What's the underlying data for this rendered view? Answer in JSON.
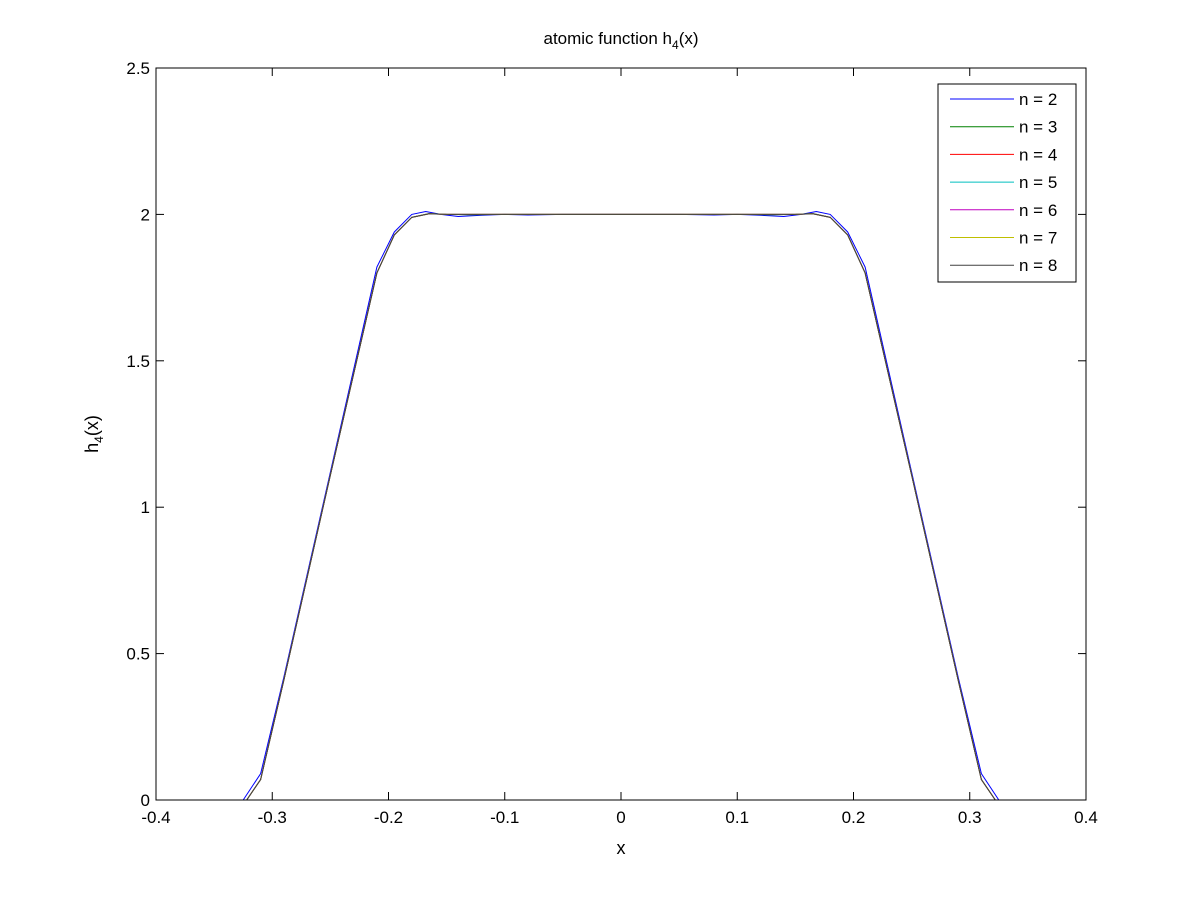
{
  "chart_data": {
    "type": "line",
    "title": "atomic function h4(x)",
    "title_parts": {
      "base": "atomic function h",
      "sub": "4",
      "tail": "(x)"
    },
    "xlabel": "x",
    "ylabel": "h4(x)",
    "ylabel_parts": {
      "base": "h",
      "sub": "4",
      "tail": "(x)"
    },
    "xlim": [
      -0.4,
      0.4
    ],
    "ylim": [
      0,
      2.5
    ],
    "xticks": [
      -0.4,
      -0.3,
      -0.2,
      -0.1,
      0,
      0.1,
      0.2,
      0.3,
      0.4
    ],
    "xtick_labels": [
      "-0.4",
      "-0.3",
      "-0.2",
      "-0.1",
      "0",
      "0.1",
      "0.2",
      "0.3",
      "0.4"
    ],
    "yticks": [
      0,
      0.5,
      1,
      1.5,
      2,
      2.5
    ],
    "ytick_labels": [
      "0",
      "0.5",
      "1",
      "1.5",
      "2",
      "2.5"
    ],
    "grid": false,
    "legend_position": "top-right",
    "series": [
      {
        "name": "n = 2",
        "color": "#0000ff",
        "x": [
          -0.4,
          -0.33,
          -0.325,
          -0.31,
          -0.29,
          -0.25,
          -0.21,
          -0.195,
          -0.18,
          -0.168,
          -0.155,
          -0.14,
          -0.12,
          -0.1,
          -0.08,
          -0.05,
          0,
          0.05,
          0.08,
          0.1,
          0.12,
          0.14,
          0.155,
          0.168,
          0.18,
          0.195,
          0.21,
          0.25,
          0.29,
          0.31,
          0.325,
          0.33,
          0.4
        ],
        "y": [
          0,
          0,
          0,
          0.09,
          0.42,
          1.12,
          1.82,
          1.94,
          2.0,
          2.01,
          2.0,
          1.993,
          1.997,
          2.0,
          1.998,
          2.0,
          2.0,
          2.0,
          1.998,
          2.0,
          1.997,
          1.993,
          2.0,
          2.01,
          2.0,
          1.94,
          1.82,
          1.12,
          0.42,
          0.09,
          0,
          0,
          0
        ]
      },
      {
        "name": "n = 3",
        "color": "#008000",
        "x": [
          -0.4,
          -0.33,
          -0.322,
          -0.31,
          -0.29,
          -0.25,
          -0.21,
          -0.195,
          -0.18,
          -0.165,
          -0.15,
          -0.13,
          -0.1,
          0,
          0.1,
          0.13,
          0.15,
          0.165,
          0.18,
          0.195,
          0.21,
          0.25,
          0.29,
          0.31,
          0.322,
          0.33,
          0.4
        ],
        "y": [
          0,
          0,
          0,
          0.07,
          0.41,
          1.11,
          1.8,
          1.93,
          1.99,
          2.003,
          2.0,
          1.999,
          2.0,
          2.0,
          2.0,
          1.999,
          2.0,
          2.003,
          1.99,
          1.93,
          1.8,
          1.11,
          0.41,
          0.07,
          0,
          0,
          0
        ]
      },
      {
        "name": "n = 4",
        "color": "#ff0000",
        "x": [
          -0.4,
          -0.33,
          -0.322,
          -0.31,
          -0.29,
          -0.25,
          -0.21,
          -0.195,
          -0.18,
          -0.165,
          -0.15,
          -0.13,
          -0.1,
          0,
          0.1,
          0.13,
          0.15,
          0.165,
          0.18,
          0.195,
          0.21,
          0.25,
          0.29,
          0.31,
          0.322,
          0.33,
          0.4
        ],
        "y": [
          0,
          0,
          0,
          0.07,
          0.41,
          1.11,
          1.8,
          1.93,
          1.99,
          2.002,
          2.0,
          2.0,
          2.0,
          2.0,
          2.0,
          2.0,
          2.0,
          2.002,
          1.99,
          1.93,
          1.8,
          1.11,
          0.41,
          0.07,
          0,
          0,
          0
        ]
      },
      {
        "name": "n = 5",
        "color": "#00bfbf",
        "x": [
          -0.4,
          -0.33,
          -0.322,
          -0.31,
          -0.29,
          -0.25,
          -0.21,
          -0.195,
          -0.18,
          -0.165,
          -0.15,
          -0.13,
          -0.1,
          0,
          0.1,
          0.13,
          0.15,
          0.165,
          0.18,
          0.195,
          0.21,
          0.25,
          0.29,
          0.31,
          0.322,
          0.33,
          0.4
        ],
        "y": [
          0,
          0,
          0,
          0.07,
          0.41,
          1.11,
          1.8,
          1.93,
          1.99,
          2.002,
          2.0,
          2.0,
          2.0,
          2.0,
          2.0,
          2.0,
          2.0,
          2.002,
          1.99,
          1.93,
          1.8,
          1.11,
          0.41,
          0.07,
          0,
          0,
          0
        ]
      },
      {
        "name": "n = 6",
        "color": "#bf00bf",
        "x": [
          -0.4,
          -0.33,
          -0.322,
          -0.31,
          -0.29,
          -0.25,
          -0.21,
          -0.195,
          -0.18,
          -0.165,
          -0.15,
          -0.13,
          -0.1,
          0,
          0.1,
          0.13,
          0.15,
          0.165,
          0.18,
          0.195,
          0.21,
          0.25,
          0.29,
          0.31,
          0.322,
          0.33,
          0.4
        ],
        "y": [
          0,
          0,
          0,
          0.07,
          0.41,
          1.11,
          1.8,
          1.93,
          1.99,
          2.002,
          2.0,
          2.0,
          2.0,
          2.0,
          2.0,
          2.0,
          2.0,
          2.002,
          1.99,
          1.93,
          1.8,
          1.11,
          0.41,
          0.07,
          0,
          0,
          0
        ]
      },
      {
        "name": "n = 7",
        "color": "#bfbf00",
        "x": [
          -0.4,
          -0.33,
          -0.322,
          -0.31,
          -0.29,
          -0.25,
          -0.21,
          -0.195,
          -0.18,
          -0.165,
          -0.15,
          -0.13,
          -0.1,
          0,
          0.1,
          0.13,
          0.15,
          0.165,
          0.18,
          0.195,
          0.21,
          0.25,
          0.29,
          0.31,
          0.322,
          0.33,
          0.4
        ],
        "y": [
          0,
          0,
          0,
          0.07,
          0.41,
          1.11,
          1.8,
          1.93,
          1.99,
          2.002,
          2.0,
          2.0,
          2.0,
          2.0,
          2.0,
          2.0,
          2.0,
          2.002,
          1.99,
          1.93,
          1.8,
          1.11,
          0.41,
          0.07,
          0,
          0,
          0
        ]
      },
      {
        "name": "n = 8",
        "color": "#404040",
        "x": [
          -0.4,
          -0.33,
          -0.322,
          -0.31,
          -0.29,
          -0.25,
          -0.21,
          -0.195,
          -0.18,
          -0.165,
          -0.15,
          -0.13,
          -0.1,
          0,
          0.1,
          0.13,
          0.15,
          0.165,
          0.18,
          0.195,
          0.21,
          0.25,
          0.29,
          0.31,
          0.322,
          0.33,
          0.4
        ],
        "y": [
          0,
          0,
          0,
          0.07,
          0.41,
          1.11,
          1.8,
          1.93,
          1.99,
          2.002,
          2.0,
          2.0,
          2.0,
          2.0,
          2.0,
          2.0,
          2.0,
          2.002,
          1.99,
          1.93,
          1.8,
          1.11,
          0.41,
          0.07,
          0,
          0,
          0
        ]
      }
    ]
  }
}
